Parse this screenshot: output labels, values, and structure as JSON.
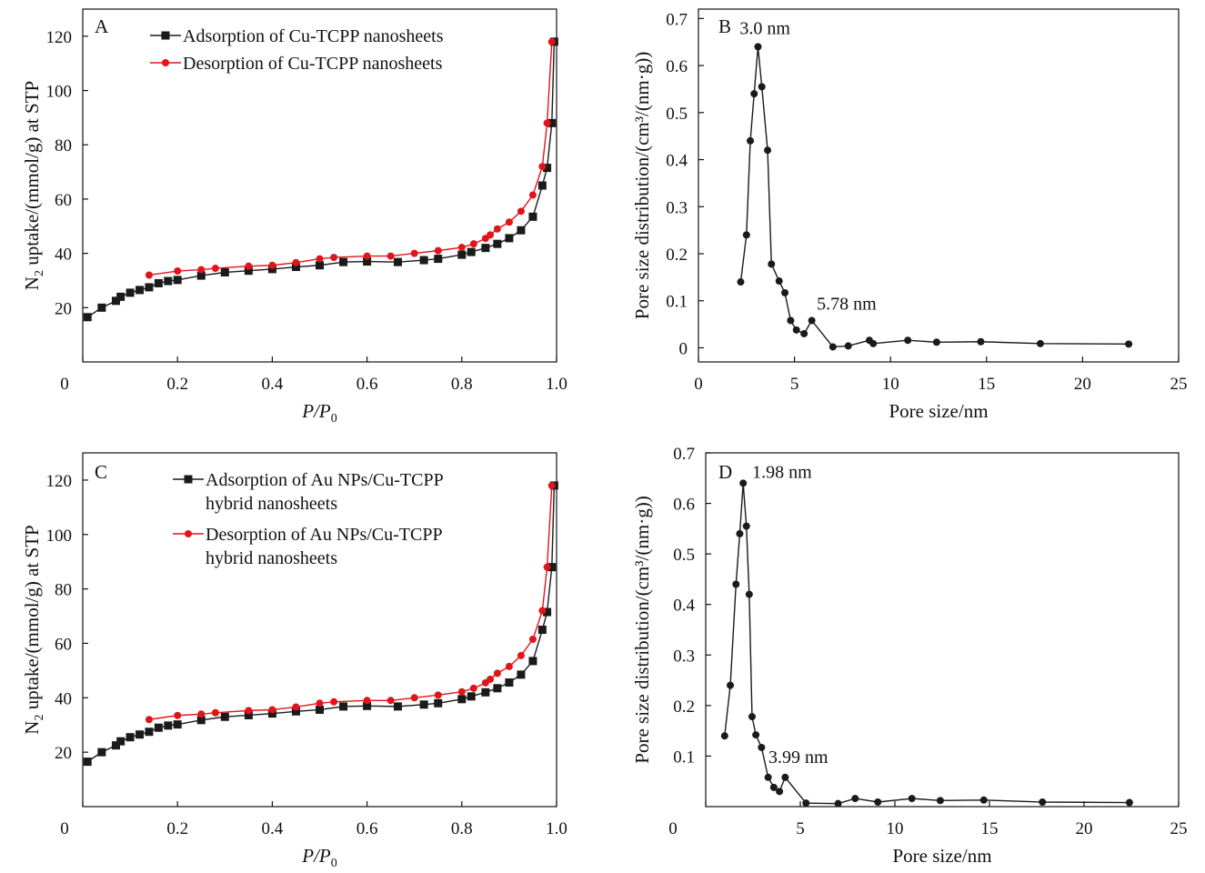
{
  "chart_data": [
    {
      "type": "line",
      "panel": "A",
      "xlabel": "P/P0",
      "ylabel": "N2 uptake/(mmol/g) at STP",
      "xlim": [
        0,
        1.0
      ],
      "ylim": [
        0,
        130
      ],
      "xticks": [
        0,
        0.2,
        0.4,
        0.6,
        0.8,
        1.0
      ],
      "xtick_labels": [
        "0",
        "0.2",
        "0.4",
        "0.6",
        "0.8",
        "1.0"
      ],
      "yticks": [
        20,
        40,
        60,
        80,
        100,
        120
      ],
      "ytick_labels": [
        "20",
        "40",
        "60",
        "80",
        "100",
        "120"
      ],
      "legend_position": "top",
      "series": [
        {
          "name": "Adsorption of Cu-TCPP nanosheets",
          "color": "#1a1a1a",
          "marker": "square",
          "x": [
            0.01,
            0.04,
            0.07,
            0.08,
            0.1,
            0.12,
            0.14,
            0.16,
            0.18,
            0.2,
            0.25,
            0.3,
            0.35,
            0.4,
            0.45,
            0.5,
            0.55,
            0.6,
            0.665,
            0.72,
            0.75,
            0.8,
            0.82,
            0.85,
            0.875,
            0.9,
            0.925,
            0.95,
            0.97,
            0.98,
            0.99,
            0.995
          ],
          "y": [
            16.5,
            20.0,
            22.5,
            24.0,
            25.5,
            26.5,
            27.5,
            29.0,
            29.8,
            30.2,
            31.8,
            33.0,
            33.6,
            34.2,
            35.0,
            35.6,
            36.8,
            37.0,
            36.8,
            37.5,
            38.0,
            39.5,
            40.5,
            42.0,
            43.5,
            45.6,
            48.5,
            53.5,
            65.0,
            71.5,
            88.0,
            118.0
          ]
        },
        {
          "name": "Desorption of Cu-TCPP nanosheets",
          "color": "#e0151b",
          "marker": "circle",
          "x": [
            0.14,
            0.2,
            0.25,
            0.28,
            0.35,
            0.4,
            0.45,
            0.5,
            0.53,
            0.6,
            0.65,
            0.7,
            0.75,
            0.8,
            0.825,
            0.85,
            0.86,
            0.875,
            0.9,
            0.925,
            0.95,
            0.97,
            0.98,
            0.99
          ],
          "y": [
            32.0,
            33.5,
            34.0,
            34.5,
            35.3,
            35.6,
            36.6,
            38.0,
            38.5,
            39.0,
            39.0,
            40.0,
            41.0,
            42.2,
            43.5,
            45.5,
            46.8,
            49.0,
            51.5,
            55.5,
            61.5,
            72.0,
            88.0,
            118.0
          ]
        }
      ]
    },
    {
      "type": "line",
      "panel": "B",
      "xlabel": "Pore size/nm",
      "ylabel": "Pore size distribution/(cm³/(nm·g))",
      "xlim": [
        0,
        25
      ],
      "ylim": [
        -0.03,
        0.72
      ],
      "xticks": [
        0,
        5,
        10,
        15,
        20,
        25
      ],
      "xtick_labels": [
        "0",
        "5",
        "10",
        "15",
        "20",
        "25"
      ],
      "yticks": [
        0,
        0.1,
        0.2,
        0.3,
        0.4,
        0.5,
        0.6,
        0.7
      ],
      "ytick_labels": [
        "0",
        "0.1",
        "0.2",
        "0.3",
        "0.4",
        "0.5",
        "0.6",
        "0.7"
      ],
      "annotations": [
        {
          "text": "3.0 nm",
          "x": 3.0,
          "y": 0.64
        },
        {
          "text": "5.78 nm",
          "x": 5.78,
          "y": 0.058
        }
      ],
      "series": [
        {
          "name": "",
          "color": "#1a1a1a",
          "marker": "circle",
          "x": [
            2.2,
            2.5,
            2.7,
            2.9,
            3.1,
            3.3,
            3.6,
            3.8,
            4.2,
            4.5,
            4.8,
            5.1,
            5.5,
            5.9,
            7.0,
            7.8,
            8.9,
            9.1,
            10.9,
            12.4,
            14.7,
            17.8,
            22.4
          ],
          "y": [
            0.14,
            0.24,
            0.44,
            0.54,
            0.64,
            0.555,
            0.42,
            0.178,
            0.142,
            0.117,
            0.058,
            0.038,
            0.03,
            0.058,
            0.002,
            0.004,
            0.016,
            0.009,
            0.016,
            0.012,
            0.013,
            0.009,
            0.008
          ]
        }
      ]
    },
    {
      "type": "line",
      "panel": "C",
      "xlabel": "P/P0",
      "ylabel": "N2 uptake/(mmol/g) at STP",
      "xlim": [
        0,
        1.0
      ],
      "ylim": [
        0,
        130
      ],
      "xticks": [
        0,
        0.2,
        0.4,
        0.6,
        0.8,
        1.0
      ],
      "xtick_labels": [
        "0",
        "0.2",
        "0.4",
        "0.6",
        "0.8",
        "1.0"
      ],
      "yticks": [
        20,
        40,
        60,
        80,
        100,
        120
      ],
      "ytick_labels": [
        "20",
        "40",
        "60",
        "80",
        "100",
        "120"
      ],
      "legend_position": "top",
      "series": [
        {
          "name": "Adsorption of Au NPs/Cu-TCPP\nhybrid nanosheets",
          "color": "#1a1a1a",
          "marker": "square",
          "x": [
            0.01,
            0.04,
            0.07,
            0.08,
            0.1,
            0.12,
            0.14,
            0.16,
            0.18,
            0.2,
            0.25,
            0.3,
            0.35,
            0.4,
            0.45,
            0.5,
            0.55,
            0.6,
            0.665,
            0.72,
            0.75,
            0.8,
            0.82,
            0.85,
            0.875,
            0.9,
            0.925,
            0.95,
            0.97,
            0.98,
            0.99,
            0.995
          ],
          "y": [
            16.5,
            20.0,
            22.5,
            24.0,
            25.5,
            26.5,
            27.5,
            29.0,
            29.8,
            30.2,
            31.8,
            33.0,
            33.6,
            34.2,
            35.0,
            35.6,
            36.8,
            37.0,
            36.8,
            37.5,
            38.0,
            39.5,
            40.5,
            42.0,
            43.5,
            45.6,
            48.5,
            53.5,
            65.0,
            71.5,
            88.0,
            118.0
          ]
        },
        {
          "name": "Desorption of Au NPs/Cu-TCPP\nhybrid nanosheets",
          "color": "#e0151b",
          "marker": "circle",
          "x": [
            0.14,
            0.2,
            0.25,
            0.28,
            0.35,
            0.4,
            0.45,
            0.5,
            0.53,
            0.6,
            0.65,
            0.7,
            0.75,
            0.8,
            0.825,
            0.85,
            0.86,
            0.875,
            0.9,
            0.925,
            0.95,
            0.97,
            0.98,
            0.99
          ],
          "y": [
            32.0,
            33.5,
            34.0,
            34.5,
            35.3,
            35.6,
            36.6,
            38.0,
            38.5,
            39.0,
            39.0,
            40.0,
            41.0,
            42.2,
            43.5,
            45.5,
            46.8,
            49.0,
            51.5,
            55.5,
            61.5,
            72.0,
            88.0,
            118.0
          ]
        }
      ]
    },
    {
      "type": "line",
      "panel": "D",
      "xlabel": "Pore size/nm",
      "ylabel": "Pore size distribution/(cm³/(nm·g))",
      "xlim": [
        0,
        25
      ],
      "ylim": [
        0,
        0.7
      ],
      "xticks": [
        0,
        5,
        10,
        15,
        20,
        25
      ],
      "xtick_labels": [
        "0",
        "5",
        "10",
        "15",
        "20",
        "25"
      ],
      "yticks": [
        0.1,
        0.2,
        0.3,
        0.4,
        0.5,
        0.6,
        0.7
      ],
      "ytick_labels": [
        "0.1",
        "0.2",
        "0.3",
        "0.4",
        "0.5",
        "0.6",
        "0.7"
      ],
      "annotations": [
        {
          "text": "1.98 nm",
          "x": 1.98,
          "y": 0.64
        },
        {
          "text": "3.99 nm",
          "x": 3.99,
          "y": 0.058
        }
      ],
      "series": [
        {
          "name": "",
          "color": "#1a1a1a",
          "marker": "circle",
          "x": [
            1.0,
            1.3,
            1.6,
            1.8,
            1.98,
            2.15,
            2.3,
            2.45,
            2.65,
            2.95,
            3.3,
            3.6,
            3.9,
            4.2,
            5.3,
            7.0,
            7.9,
            9.1,
            10.9,
            12.4,
            14.7,
            17.8,
            22.4
          ],
          "y": [
            0.14,
            0.24,
            0.44,
            0.54,
            0.64,
            0.555,
            0.42,
            0.178,
            0.142,
            0.117,
            0.058,
            0.038,
            0.03,
            0.058,
            0.007,
            0.006,
            0.016,
            0.009,
            0.016,
            0.012,
            0.013,
            0.009,
            0.008
          ]
        }
      ]
    }
  ]
}
